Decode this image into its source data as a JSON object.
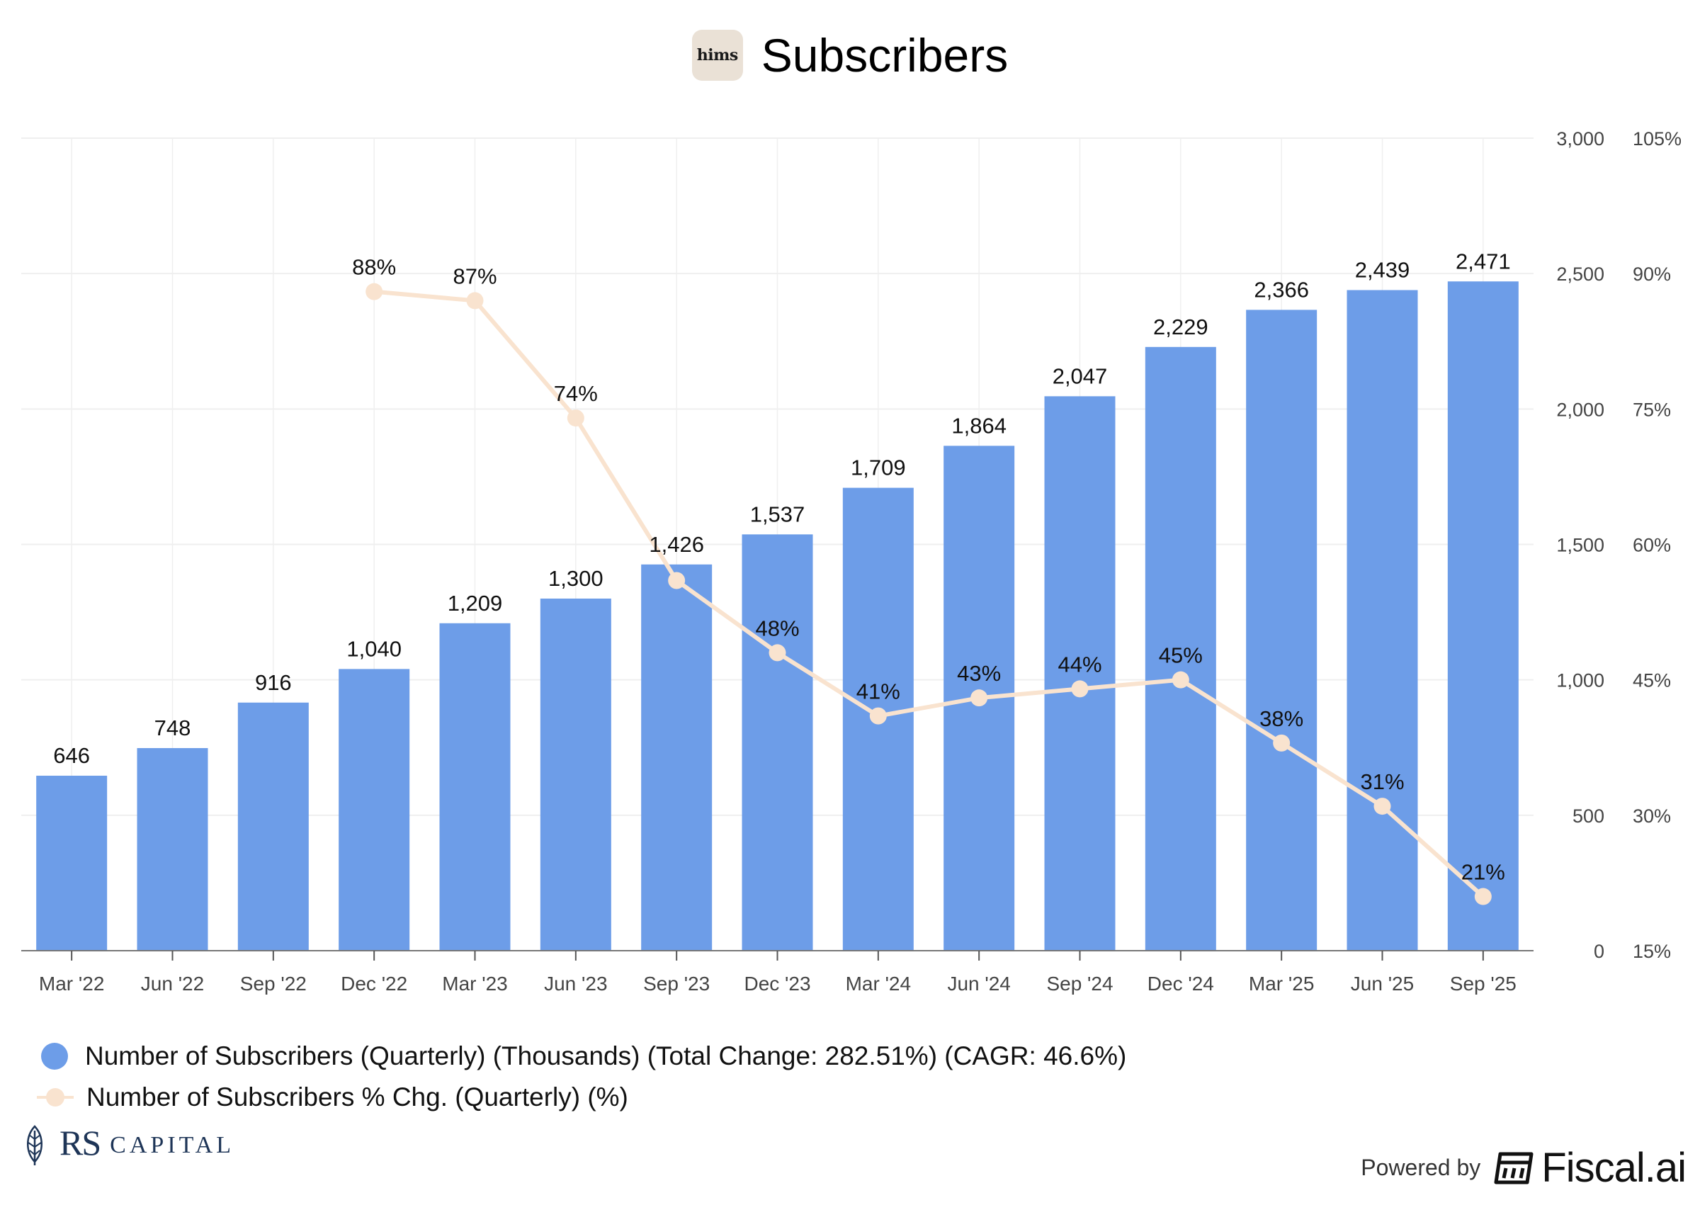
{
  "header": {
    "logo_text": "hims",
    "title": "Subscribers"
  },
  "chart_data": {
    "type": "bar",
    "title": "Subscribers",
    "categories": [
      "Mar '22",
      "Jun '22",
      "Sep '22",
      "Dec '22",
      "Mar '23",
      "Jun '23",
      "Sep '23",
      "Dec '23",
      "Mar '24",
      "Jun '24",
      "Sep '24",
      "Dec '24",
      "Mar '25",
      "Jun '25",
      "Sep '25"
    ],
    "series": [
      {
        "name": "Number of Subscribers (Quarterly) (Thousands) (Total Change: 282.51%) (CAGR: 46.6%)",
        "type": "bar",
        "axis": "left",
        "color": "#6d9de8",
        "values": [
          646,
          748,
          916,
          1040,
          1209,
          1300,
          1426,
          1537,
          1709,
          1864,
          2047,
          2229,
          2366,
          2439,
          2471
        ],
        "labels": [
          "646",
          "748",
          "916",
          "1,040",
          "1,209",
          "1,300",
          "1,426",
          "1,537",
          "1,709",
          "1,864",
          "2,047",
          "2,229",
          "2,366",
          "2,439",
          "2,471"
        ]
      },
      {
        "name": "Number of Subscribers % Chg. (Quarterly) (%)",
        "type": "line",
        "axis": "right",
        "color": "#f9e3cf",
        "values": [
          null,
          null,
          null,
          88,
          87,
          74,
          56,
          48,
          41,
          43,
          44,
          45,
          38,
          31,
          21
        ],
        "labels": [
          "",
          "",
          "",
          "88%",
          "87%",
          "74%",
          "",
          "48%",
          "41%",
          "43%",
          "44%",
          "45%",
          "38%",
          "31%",
          "21%"
        ]
      }
    ],
    "y_left": {
      "min": 0,
      "max": 3000,
      "ticks": [
        0,
        500,
        1000,
        1500,
        2000,
        2500,
        3000
      ],
      "tick_labels": [
        "0",
        "500",
        "1,000",
        "1,500",
        "2,000",
        "2,500",
        "3,000"
      ]
    },
    "y_right": {
      "min": 15,
      "max": 105,
      "ticks": [
        15,
        30,
        45,
        60,
        75,
        90,
        105
      ],
      "tick_labels": [
        "15%",
        "30%",
        "45%",
        "60%",
        "75%",
        "90%",
        "105%"
      ]
    },
    "grid": true,
    "legend_position": "bottom-left"
  },
  "legend": {
    "items": [
      {
        "label": "Number of Subscribers (Quarterly) (Thousands) (Total Change: 282.51%) (CAGR: 46.6%)"
      },
      {
        "label": "Number of Subscribers % Chg. (Quarterly) (%)"
      }
    ]
  },
  "footer": {
    "brand_initials": "RS",
    "brand_word": "CAPITAL",
    "powered_by": "Powered by",
    "fiscal": "Fiscal.ai"
  },
  "colors": {
    "bar": "#6d9de8",
    "line": "#f9e3cf",
    "grid": "#efefef",
    "axis_text": "#444444",
    "brand_navy": "#1e3557"
  }
}
